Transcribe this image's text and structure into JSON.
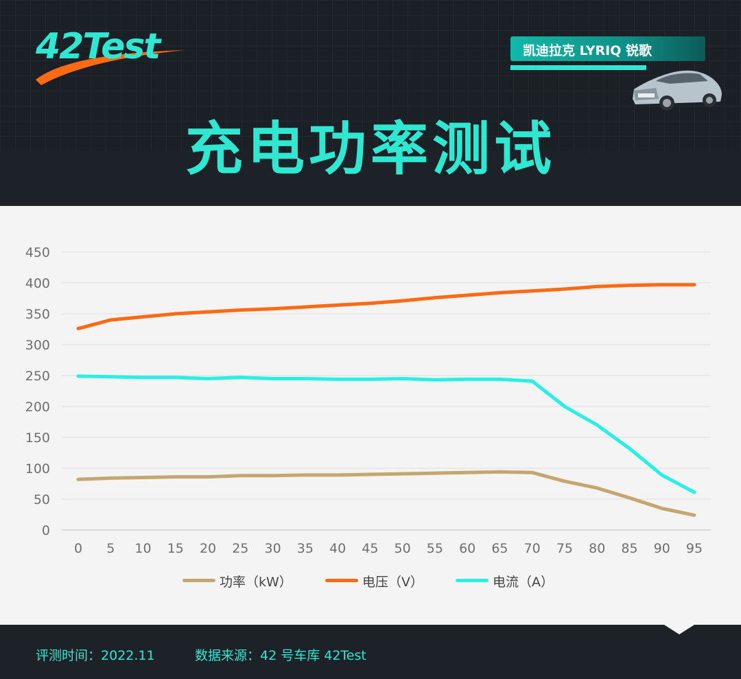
{
  "header": {
    "logo_text": "42Test",
    "badge_text": "凯迪拉克 LYRIQ 锐歌",
    "title": "充电功率测试"
  },
  "colors": {
    "accent": "#2ee8d2",
    "power": "#c4a66e",
    "voltage": "#ff6a13",
    "current": "#27f0e6",
    "swoosh": "#ff6a13"
  },
  "icons": {
    "car": "car-image",
    "logo": "logo-swoosh-icon"
  },
  "chart_data": {
    "type": "line",
    "title": "",
    "xlabel": "",
    "ylabel": "",
    "x": [
      0,
      5,
      10,
      15,
      20,
      25,
      30,
      35,
      40,
      45,
      50,
      55,
      60,
      65,
      70,
      75,
      80,
      85,
      90,
      95
    ],
    "x_tick_labels": [
      "0",
      "5",
      "10",
      "15",
      "20",
      "25",
      "30",
      "35",
      "40",
      "45",
      "50",
      "55",
      "60",
      "65",
      "70",
      "75",
      "80",
      "85",
      "90",
      "95"
    ],
    "ylim": [
      0,
      450
    ],
    "y_ticks": [
      0,
      50,
      100,
      150,
      200,
      250,
      300,
      350,
      400,
      450
    ],
    "y_tick_labels": [
      "0",
      "50",
      "100",
      "150",
      "200",
      "250",
      "300",
      "350",
      "400",
      "450"
    ],
    "grid": "horizontal",
    "legend_position": "bottom-center",
    "series": [
      {
        "name": "功率（kW）",
        "color": "#c4a66e",
        "values": [
          82,
          84,
          85,
          86,
          86,
          88,
          88,
          89,
          89,
          90,
          91,
          92,
          93,
          94,
          93,
          79,
          68,
          52,
          35,
          24
        ]
      },
      {
        "name": "电压（V）",
        "color": "#ff6a13",
        "values": [
          326,
          340,
          345,
          350,
          353,
          356,
          358,
          361,
          364,
          367,
          371,
          376,
          380,
          384,
          387,
          390,
          394,
          396,
          397,
          397
        ]
      },
      {
        "name": "电流（A）",
        "color": "#27f0e6",
        "values": [
          249,
          248,
          247,
          247,
          245,
          247,
          245,
          245,
          244,
          244,
          245,
          243,
          244,
          244,
          241,
          200,
          170,
          132,
          89,
          61
        ]
      }
    ]
  },
  "footer": {
    "date_text": "评测时间：2022.11",
    "source_text": "数据来源：42 号车库 42Test"
  }
}
